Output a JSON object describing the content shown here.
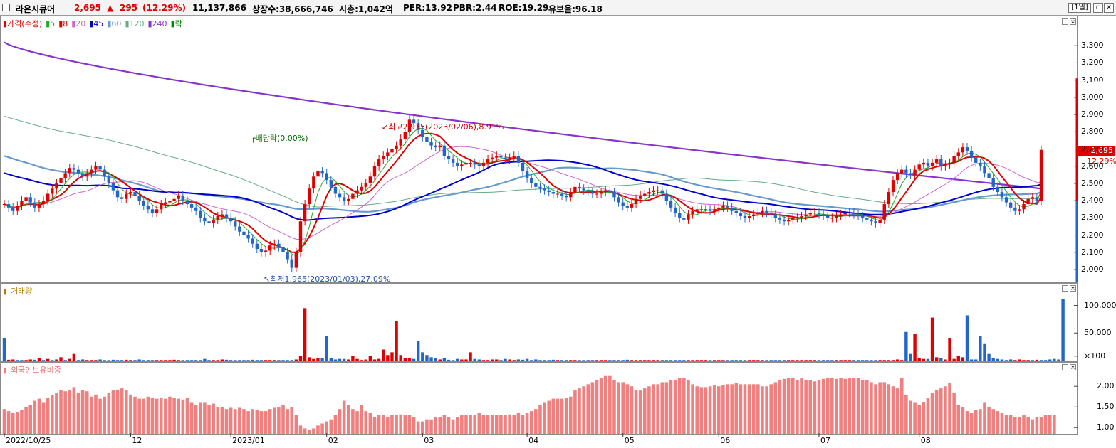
{
  "header": {
    "name": "라온시큐어",
    "price": "2,695",
    "change_arrow": "▲",
    "change": "295",
    "change_pct": "(12.29%)",
    "volume": "11,137,866",
    "shares": "상장수:38,666,746",
    "mcap": "시총:1,042억",
    "per": "PER:13.92",
    "pbr": "PBR:2.44",
    "roe": "ROE:19.29",
    "reserve": "유보율:96.18",
    "period": "[1일]",
    "close_btn": "×"
  },
  "price_panel": {
    "legend": [
      {
        "label": "가격(수정)",
        "color": "#e00000"
      },
      {
        "label": "5",
        "color": "#22aa22"
      },
      {
        "label": "8",
        "color": "#e00000"
      },
      {
        "label": "20",
        "color": "#cc66cc"
      },
      {
        "label": "45",
        "color": "#0000cc"
      },
      {
        "label": "60",
        "color": "#6699cc"
      },
      {
        "label": "120",
        "color": "#66aa88"
      },
      {
        "label": "240",
        "color": "#8833cc"
      },
      {
        "label": "락",
        "color": "#008800"
      }
    ],
    "yticks": [
      "3,300",
      "3,200",
      "3,100",
      "3,000",
      "2,900",
      "2,800",
      "2,700",
      "2,600",
      "2,500",
      "2,400",
      "2,300",
      "2,200",
      "2,100",
      "2,000"
    ],
    "current_price": "2,695",
    "current_pct": "12.29%",
    "annotations": {
      "high": "최고2,935(2023/02/06),8.91%",
      "low": "최저1,965(2023/01/03),27.09%",
      "dividend": "배당락(0.00%)"
    }
  },
  "volume_panel": {
    "legend": "거래량",
    "yticks": [
      "100,000",
      "50,000",
      "×100"
    ]
  },
  "foreign_panel": {
    "legend": "외국인보유비중",
    "yticks": [
      "2.00",
      "1.50",
      "1.00"
    ]
  },
  "xaxis": [
    "2022/10/25",
    "12",
    "2023/01",
    "02",
    "03",
    "04",
    "05",
    "06",
    "07",
    "08"
  ],
  "colors": {
    "up": "#e00000",
    "down": "#2266cc",
    "foreign_bar": "#f08080",
    "ma240": "#8833cc",
    "ma45": "#0000cc"
  },
  "chart_data": [
    {
      "type": "candlestick",
      "title": "가격(수정)",
      "ylim": [
        1930,
        3400
      ],
      "ma_periods": [
        5,
        8,
        20,
        45,
        60,
        120,
        240
      ],
      "high": {
        "value": 2935,
        "date": "2023/02/06"
      },
      "low": {
        "value": 1965,
        "date": "2023/01/03"
      },
      "last": {
        "value": 2695,
        "change": 295,
        "change_pct": 12.29
      },
      "close": [
        2380,
        2360,
        2340,
        2370,
        2400,
        2420,
        2390,
        2360,
        2380,
        2400,
        2440,
        2470,
        2500,
        2530,
        2560,
        2590,
        2580,
        2560,
        2540,
        2560,
        2580,
        2600,
        2580,
        2540,
        2500,
        2460,
        2420,
        2410,
        2440,
        2450,
        2430,
        2400,
        2370,
        2350,
        2330,
        2350,
        2380,
        2390,
        2400,
        2410,
        2430,
        2400,
        2380,
        2360,
        2340,
        2300,
        2280,
        2270,
        2290,
        2310,
        2320,
        2300,
        2280,
        2250,
        2220,
        2200,
        2180,
        2150,
        2120,
        2100,
        2110,
        2140,
        2150,
        2130,
        2100,
        2060,
        2010,
        2100,
        2280,
        2380,
        2470,
        2540,
        2570,
        2560,
        2520,
        2480,
        2440,
        2420,
        2400,
        2410,
        2440,
        2460,
        2480,
        2500,
        2540,
        2600,
        2640,
        2660,
        2680,
        2700,
        2720,
        2760,
        2800,
        2870,
        2850,
        2810,
        2770,
        2740,
        2720,
        2710,
        2720,
        2660,
        2640,
        2620,
        2600,
        2610,
        2620,
        2620,
        2610,
        2600,
        2620,
        2640,
        2650,
        2660,
        2650,
        2640,
        2650,
        2660,
        2620,
        2570,
        2530,
        2500,
        2480,
        2470,
        2460,
        2450,
        2440,
        2440,
        2430,
        2420,
        2450,
        2480,
        2470,
        2460,
        2450,
        2440,
        2440,
        2450,
        2460,
        2450,
        2420,
        2390,
        2370,
        2360,
        2380,
        2410,
        2430,
        2440,
        2450,
        2460,
        2460,
        2440,
        2400,
        2360,
        2330,
        2300,
        2290,
        2320,
        2340,
        2350,
        2350,
        2350,
        2340,
        2350,
        2360,
        2370,
        2360,
        2340,
        2330,
        2310,
        2300,
        2310,
        2320,
        2330,
        2340,
        2330,
        2320,
        2300,
        2290,
        2280,
        2290,
        2300,
        2300,
        2310,
        2320,
        2330,
        2330,
        2320,
        2310,
        2300,
        2300,
        2310,
        2320,
        2330,
        2330,
        2320,
        2310,
        2300,
        2290,
        2280,
        2270,
        2290,
        2380,
        2450,
        2520,
        2560,
        2580,
        2560,
        2550,
        2580,
        2610,
        2620,
        2600,
        2620,
        2640,
        2600,
        2610,
        2620,
        2660,
        2680,
        2710,
        2690,
        2650,
        2620,
        2600,
        2560,
        2530,
        2480,
        2450,
        2420,
        2390,
        2360,
        2340,
        2350,
        2380,
        2410,
        2420,
        2400,
        2695
      ]
    },
    {
      "type": "bar",
      "title": "거래량",
      "ylim": [
        0,
        120000
      ],
      "values": [
        40000,
        1500,
        2000,
        1000,
        1000,
        1000,
        2000,
        1500,
        4000,
        1000,
        3000,
        1000,
        2000,
        6000,
        1000,
        3000,
        12000,
        1000,
        2000,
        1000,
        1000,
        1000,
        2000,
        1000,
        1000,
        1500,
        1000,
        1000,
        1500,
        1000,
        1000,
        2000,
        1000,
        1000,
        1000,
        1000,
        1000,
        1000,
        1000,
        1500,
        1000,
        1000,
        1000,
        1000,
        1000,
        1000,
        3000,
        1000,
        1000,
        1000,
        2000,
        1500,
        1000,
        1000,
        1000,
        1000,
        1000,
        1500,
        1000,
        1000,
        1000,
        1000,
        1000,
        1000,
        1000,
        1000,
        1000,
        2000,
        8000,
        95000,
        6000,
        3000,
        4000,
        4000,
        45000,
        5000,
        2000,
        3000,
        3000,
        2000,
        9000,
        3000,
        1000,
        2000,
        8000,
        2000,
        3000,
        20000,
        10000,
        15000,
        72000,
        10000,
        4000,
        5000,
        3000,
        35000,
        15000,
        10000,
        6000,
        5000,
        2000,
        4000,
        1500,
        1000,
        3000,
        2000,
        2000,
        15000,
        3000,
        2000,
        1000,
        1000,
        2000,
        2000,
        1000,
        3000,
        2000,
        1000,
        2000,
        1500,
        3000,
        1000,
        2000,
        1000,
        1000,
        1000,
        1500,
        1000,
        1000,
        1000,
        1000,
        1000,
        1000,
        1000,
        1000,
        1000,
        1000,
        1000,
        1000,
        1000,
        1000,
        1000,
        1000,
        1500,
        1000,
        1000,
        1000,
        1000,
        1000,
        1000,
        1000,
        1000,
        1000,
        1000,
        1000,
        1000,
        1000,
        1000,
        1000,
        1000,
        1000,
        1000,
        1000,
        1000,
        1000,
        1000,
        1000,
        1000,
        1000,
        1000,
        1000,
        1000,
        1000,
        1000,
        1000,
        1000,
        1000,
        1000,
        1000,
        1000,
        1000,
        1000,
        1000,
        1000,
        1000,
        1000,
        1000,
        1000,
        1000,
        1000,
        1000,
        1000,
        1000,
        1000,
        1000,
        1000,
        1000,
        1000,
        1000,
        1000,
        1000,
        1000,
        1000,
        1000,
        1000,
        2000,
        1000,
        52000,
        12000,
        48000,
        4000,
        3000,
        3000,
        78000,
        6000,
        5000,
        2000,
        40000,
        3000,
        8000,
        6000,
        82000,
        2000,
        2000,
        45000,
        30000,
        12000,
        5000,
        3000,
        2000,
        1000,
        2000,
        1000,
        2000,
        1000,
        1000,
        1000,
        1500,
        1000,
        1000,
        2000,
        3000,
        2000,
        112000
      ],
      "up": [
        false,
        true,
        true,
        false,
        false,
        true,
        true,
        false,
        true,
        false,
        true,
        false,
        true,
        true,
        false,
        true,
        true,
        false,
        false,
        true,
        true,
        true,
        false,
        false,
        false,
        false,
        false,
        false,
        true,
        true,
        false,
        false,
        false,
        false,
        false,
        true,
        true,
        true,
        true,
        true,
        true,
        false,
        false,
        false,
        false,
        false,
        false,
        false,
        true,
        true,
        true,
        false,
        false,
        false,
        false,
        false,
        false,
        false,
        false,
        false,
        true,
        true,
        true,
        false,
        false,
        false,
        false,
        true,
        true,
        true,
        true,
        true,
        true,
        false,
        false,
        false,
        false,
        false,
        false,
        true,
        true,
        true,
        true,
        true,
        true,
        true,
        true,
        true,
        true,
        true,
        true,
        true,
        true,
        true,
        false,
        false,
        false,
        false,
        false,
        false,
        true,
        false,
        false,
        false,
        false,
        true,
        true,
        true,
        false,
        false,
        true,
        true,
        true,
        true,
        false,
        false,
        true,
        true,
        false,
        false,
        false,
        false,
        false,
        false,
        false,
        false,
        false,
        true,
        false,
        false,
        true,
        true,
        false,
        false,
        false,
        false,
        true,
        true,
        true,
        false,
        false,
        false,
        false,
        false,
        true,
        true,
        true,
        true,
        true,
        true,
        true,
        false,
        false,
        false,
        false,
        false,
        false,
        true,
        true,
        true,
        true,
        true,
        false,
        true,
        true,
        true,
        false,
        false,
        false,
        false,
        false,
        true,
        true,
        true,
        true,
        false,
        false,
        false,
        false,
        false,
        true,
        true,
        true,
        true,
        true,
        true,
        true,
        false,
        false,
        false,
        false,
        true,
        true,
        true,
        true,
        false,
        false,
        false,
        false,
        false,
        false,
        true,
        true,
        true,
        true,
        true,
        true,
        false,
        false,
        true,
        true,
        true,
        false,
        true,
        true,
        false,
        true,
        true,
        true,
        true,
        true,
        false,
        false,
        false,
        false,
        false,
        false,
        false,
        false,
        false,
        false,
        false,
        true,
        true,
        true,
        true,
        false,
        true
      ]
    },
    {
      "type": "bar",
      "title": "외국인보유비중",
      "ylim": [
        0.85,
        2.4
      ],
      "values": [
        1.45,
        1.4,
        1.35,
        1.38,
        1.42,
        1.5,
        1.55,
        1.65,
        1.7,
        1.6,
        1.72,
        1.78,
        1.85,
        1.9,
        1.88,
        1.9,
        1.98,
        1.85,
        1.9,
        1.88,
        1.75,
        1.8,
        1.7,
        1.75,
        1.85,
        1.9,
        1.92,
        1.95,
        1.9,
        1.8,
        1.75,
        1.7,
        1.7,
        1.75,
        1.72,
        1.7,
        1.72,
        1.7,
        1.75,
        1.72,
        1.7,
        1.68,
        1.72,
        1.6,
        1.55,
        1.6,
        1.6,
        1.55,
        1.58,
        1.5,
        1.5,
        1.45,
        1.48,
        1.45,
        1.48,
        1.45,
        1.4,
        1.45,
        1.42,
        1.4,
        1.4,
        1.45,
        1.48,
        1.5,
        1.55,
        1.45,
        1.5,
        1.3,
        1.05,
        0.98,
        0.95,
        0.98,
        1.05,
        1.1,
        1.15,
        1.2,
        1.3,
        1.45,
        1.65,
        1.55,
        1.45,
        1.4,
        1.55,
        1.4,
        1.35,
        1.25,
        1.3,
        1.3,
        1.25,
        1.3,
        1.3,
        1.32,
        1.3,
        1.3,
        1.25,
        1.15,
        1.15,
        1.2,
        1.2,
        1.25,
        1.25,
        1.3,
        1.25,
        1.2,
        1.25,
        1.3,
        1.3,
        1.3,
        1.3,
        1.35,
        1.3,
        1.3,
        1.3,
        1.3,
        1.3,
        1.3,
        1.32,
        1.3,
        1.35,
        1.3,
        1.35,
        1.4,
        1.45,
        1.55,
        1.6,
        1.65,
        1.7,
        1.7,
        1.7,
        1.72,
        1.75,
        1.9,
        1.95,
        2.0,
        2.05,
        2.1,
        2.15,
        2.2,
        2.25,
        2.25,
        2.15,
        2.1,
        2.1,
        2.05,
        2.0,
        1.9,
        1.9,
        1.95,
        2.0,
        2.05,
        2.05,
        2.1,
        2.1,
        2.15,
        2.15,
        2.2,
        2.2,
        2.15,
        2.05,
        2.0,
        1.98,
        1.98,
        2.0,
        2.02,
        2.0,
        2.02,
        2.05,
        2.05,
        2.08,
        2.05,
        2.05,
        2.05,
        2.05,
        2.05,
        2.0,
        2.0,
        2.05,
        2.1,
        2.15,
        2.18,
        2.2,
        2.2,
        2.15,
        2.2,
        2.15,
        2.15,
        2.12,
        2.15,
        2.18,
        2.2,
        2.2,
        2.18,
        2.2,
        2.18,
        2.2,
        2.2,
        2.2,
        2.15,
        2.15,
        2.1,
        2.05,
        2.1,
        2.1,
        2.05,
        2.0,
        1.95,
        2.2,
        1.78,
        1.65,
        1.6,
        1.55,
        1.62,
        1.72,
        1.85,
        1.9,
        1.95,
        2.0,
        2.08,
        1.85,
        1.55,
        1.5,
        1.4,
        1.35,
        1.42,
        1.45,
        1.6,
        1.5,
        1.45,
        1.4,
        1.35,
        1.3,
        1.3,
        1.25,
        1.25,
        1.3,
        1.25,
        1.2,
        1.25,
        1.25,
        1.3,
        1.3,
        1.3
      ]
    }
  ]
}
